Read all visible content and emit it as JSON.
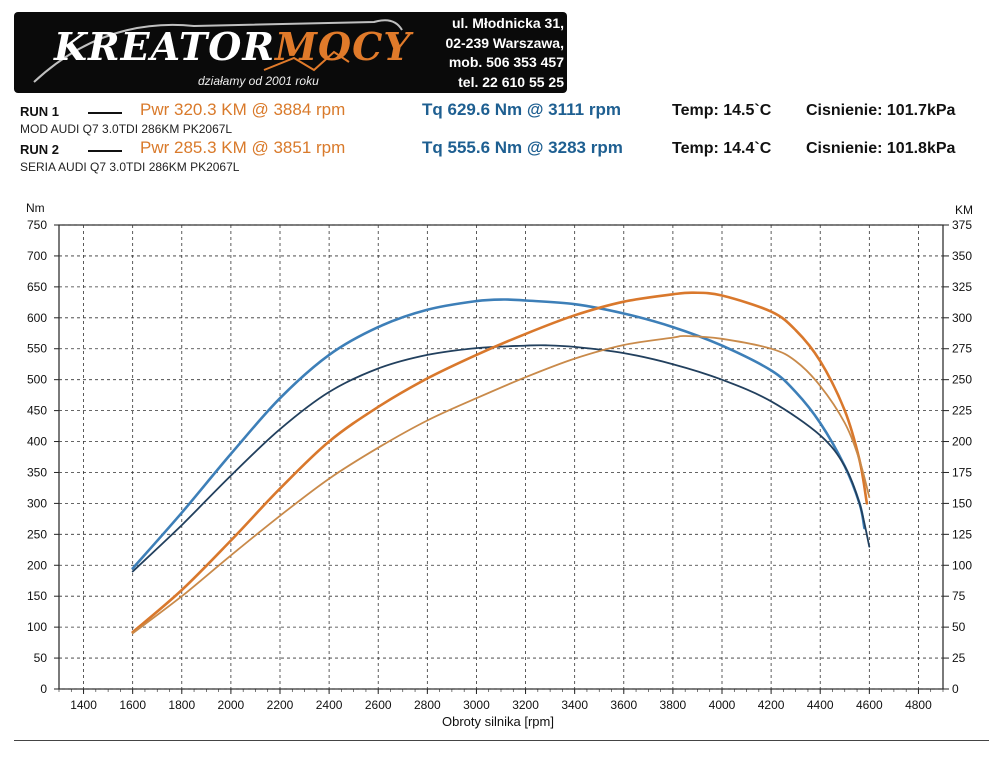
{
  "logo": {
    "brand_part1": "KREATOR",
    "brand_part2": "MOCY",
    "tagline": "działamy od 2001 roku",
    "address": [
      "ul. Młodnicka 31,",
      "02-239 Warszawa,",
      "mob. 506 353 457",
      "tel. 22 610 55 25"
    ]
  },
  "runs": [
    {
      "label": "RUN 1",
      "pwr": "Pwr 320.3 KM @ 3884 rpm",
      "tq": "Tq 629.6 Nm @ 3111 rpm",
      "temp": "Temp: 14.5`C",
      "pressure": "Cisnienie: 101.7kPa",
      "car": "MOD AUDI Q7 3.0TDI 286KM PK2067L"
    },
    {
      "label": "RUN 2",
      "pwr": "Pwr 285.3 KM @ 3851 rpm",
      "tq": "Tq 555.6 Nm @ 3283 rpm",
      "temp": "Temp: 14.4`C",
      "pressure": "Cisnienie: 101.8kPa",
      "car": "SERIA AUDI Q7 3.0TDI 286KM PK2067L"
    }
  ],
  "colors": {
    "torque_run1": "#3d7fb8",
    "torque_run2": "#22405e",
    "power_run1": "#d9782c",
    "power_run2": "#c98a4a",
    "pwr_text": "#d97a2b",
    "tq_text": "#1e5f91"
  },
  "chart_data": {
    "type": "line",
    "xlabel": "Obroty silnika [rpm]",
    "ylabel_left": "Nm",
    "ylabel_right": "KM",
    "xlim": [
      1300,
      4900
    ],
    "ylim_left": [
      0,
      750
    ],
    "ylim_right": [
      0,
      375
    ],
    "x_ticks": [
      1400,
      1600,
      1800,
      2000,
      2200,
      2400,
      2600,
      2800,
      3000,
      3200,
      3400,
      3600,
      3800,
      4000,
      4200,
      4400,
      4600,
      4800
    ],
    "y_ticks_left": [
      0,
      50,
      100,
      150,
      200,
      250,
      300,
      350,
      400,
      450,
      500,
      550,
      600,
      650,
      700,
      750
    ],
    "y_ticks_right": [
      0,
      25,
      50,
      75,
      100,
      125,
      150,
      175,
      200,
      225,
      250,
      275,
      300,
      325,
      350,
      375
    ],
    "grid": true,
    "series": [
      {
        "axis": "left",
        "color": "#3d7fb8",
        "x": [
          1600,
          1800,
          2000,
          2200,
          2400,
          2600,
          2800,
          3000,
          3111,
          3200,
          3400,
          3600,
          3800,
          4000,
          4200,
          4300,
          4400,
          4500,
          4560,
          4580
        ],
        "y": [
          195,
          285,
          380,
          470,
          540,
          585,
          613,
          627,
          629.6,
          628,
          622,
          607,
          585,
          555,
          515,
          480,
          430,
          360,
          300,
          260
        ]
      },
      {
        "axis": "left",
        "color": "#22405e",
        "x": [
          1600,
          1800,
          2000,
          2200,
          2400,
          2600,
          2800,
          3000,
          3200,
          3283,
          3400,
          3600,
          3800,
          4000,
          4200,
          4400,
          4500,
          4560,
          4600
        ],
        "y": [
          190,
          265,
          345,
          420,
          480,
          518,
          540,
          551,
          555,
          555.6,
          553,
          543,
          525,
          500,
          465,
          410,
          360,
          300,
          230
        ]
      },
      {
        "axis": "right",
        "color": "#d9782c",
        "x": [
          1600,
          1800,
          2000,
          2200,
          2400,
          2600,
          2800,
          3000,
          3200,
          3400,
          3600,
          3800,
          3884,
          4000,
          4200,
          4300,
          4400,
          4500,
          4560,
          4590
        ],
        "y": [
          46,
          80,
          120,
          162,
          200,
          228,
          251,
          270,
          287,
          302,
          313,
          319,
          320.3,
          318,
          305,
          290,
          265,
          225,
          185,
          150
        ]
      },
      {
        "axis": "right",
        "color": "#c98a4a",
        "x": [
          1600,
          1800,
          2000,
          2200,
          2400,
          2600,
          2800,
          3000,
          3200,
          3400,
          3600,
          3800,
          3851,
          4000,
          4200,
          4300,
          4400,
          4500,
          4560,
          4600
        ],
        "y": [
          45,
          75,
          108,
          140,
          170,
          195,
          217,
          235,
          252,
          267,
          278,
          284,
          285.3,
          283,
          275,
          265,
          245,
          215,
          185,
          155
        ]
      }
    ]
  }
}
